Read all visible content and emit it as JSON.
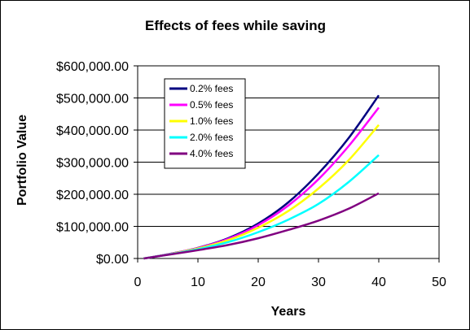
{
  "chart_data": {
    "type": "line",
    "title": "Effects of fees while saving",
    "xlabel": "Years",
    "ylabel": "Portfolio Value",
    "xlim": [
      0,
      50
    ],
    "ylim": [
      0,
      600000
    ],
    "x_ticks": [
      0,
      10,
      20,
      30,
      40,
      50
    ],
    "y_ticks": [
      0,
      100000,
      200000,
      300000,
      400000,
      500000,
      600000
    ],
    "x_tick_labels": [
      "0",
      "10",
      "20",
      "30",
      "40",
      "50"
    ],
    "y_tick_labels": [
      "$0.00",
      "$100,000.00",
      "$200,000.00",
      "$300,000.00",
      "$400,000.00",
      "$500,000.00",
      "$600,000.00"
    ],
    "grid": "horizontal",
    "legend_position": "top-left",
    "x": [
      1,
      5,
      10,
      15,
      20,
      25,
      30,
      35,
      40
    ],
    "series": [
      {
        "name": "0.2% fees",
        "color": "#000080",
        "values": [
          0,
          13000,
          33000,
          63000,
          109000,
          175000,
          265000,
          375000,
          508000
        ]
      },
      {
        "name": "0.5% fees",
        "color": "#FF00FF",
        "values": [
          0,
          13000,
          32500,
          61000,
          104000,
          165000,
          247000,
          350000,
          470000
        ]
      },
      {
        "name": "1.0% fees",
        "color": "#FFFF00",
        "values": [
          0,
          12500,
          31000,
          57000,
          96000,
          148000,
          218000,
          306000,
          416000
        ]
      },
      {
        "name": "2.0% fees",
        "color": "#00FFFF",
        "values": [
          0,
          12000,
          29000,
          51000,
          82000,
          121000,
          170000,
          238000,
          322000
        ]
      },
      {
        "name": "4.0% fees",
        "color": "#800080",
        "values": [
          0,
          11500,
          26000,
          42000,
          63000,
          89000,
          118000,
          155000,
          203000
        ]
      }
    ]
  }
}
